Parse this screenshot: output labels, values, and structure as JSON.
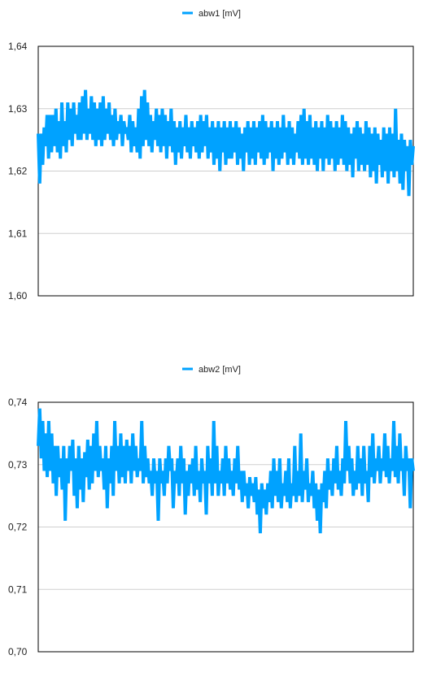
{
  "chart_data": [
    {
      "type": "line",
      "xlabel": "",
      "ylabel": "",
      "ylim": [
        1.6,
        1.64
      ],
      "yticks": [
        "1,60",
        "1,61",
        "1,62",
        "1,63",
        "1,64"
      ],
      "grid": true,
      "legend": "top-center",
      "series": [
        {
          "name": "abw1 [mV]",
          "color": "#00a2ff",
          "values": [
            1.626,
            1.618,
            1.626,
            1.621,
            1.627,
            1.624,
            1.629,
            1.622,
            1.629,
            1.623,
            1.629,
            1.624,
            1.63,
            1.623,
            1.628,
            1.622,
            1.631,
            1.624,
            1.628,
            1.623,
            1.631,
            1.625,
            1.63,
            1.624,
            1.631,
            1.626,
            1.629,
            1.625,
            1.631,
            1.625,
            1.632,
            1.626,
            1.633,
            1.625,
            1.63,
            1.626,
            1.632,
            1.625,
            1.631,
            1.624,
            1.63,
            1.625,
            1.631,
            1.624,
            1.632,
            1.625,
            1.63,
            1.626,
            1.631,
            1.625,
            1.629,
            1.624,
            1.63,
            1.625,
            1.628,
            1.626,
            1.629,
            1.624,
            1.628,
            1.626,
            1.627,
            1.625,
            1.629,
            1.623,
            1.628,
            1.624,
            1.627,
            1.623,
            1.63,
            1.622,
            1.632,
            1.624,
            1.633,
            1.625,
            1.631,
            1.624,
            1.629,
            1.623,
            1.628,
            1.625,
            1.63,
            1.624,
            1.629,
            1.623,
            1.63,
            1.624,
            1.629,
            1.622,
            1.628,
            1.624,
            1.63,
            1.623,
            1.628,
            1.621,
            1.627,
            1.623,
            1.628,
            1.622,
            1.627,
            1.624,
            1.629,
            1.623,
            1.627,
            1.622,
            1.628,
            1.624,
            1.627,
            1.623,
            1.628,
            1.622,
            1.629,
            1.623,
            1.628,
            1.624,
            1.629,
            1.622,
            1.627,
            1.623,
            1.628,
            1.621,
            1.627,
            1.622,
            1.628,
            1.62,
            1.627,
            1.623,
            1.628,
            1.621,
            1.627,
            1.622,
            1.628,
            1.622,
            1.627,
            1.623,
            1.628,
            1.621,
            1.627,
            1.622,
            1.626,
            1.62,
            1.627,
            1.623,
            1.628,
            1.621,
            1.627,
            1.622,
            1.628,
            1.621,
            1.627,
            1.623,
            1.628,
            1.622,
            1.629,
            1.621,
            1.628,
            1.622,
            1.627,
            1.623,
            1.628,
            1.62,
            1.627,
            1.622,
            1.628,
            1.621,
            1.627,
            1.622,
            1.629,
            1.623,
            1.627,
            1.621,
            1.628,
            1.622,
            1.627,
            1.621,
            1.626,
            1.623,
            1.628,
            1.622,
            1.629,
            1.621,
            1.63,
            1.622,
            1.628,
            1.621,
            1.629,
            1.622,
            1.627,
            1.621,
            1.628,
            1.62,
            1.627,
            1.622,
            1.628,
            1.62,
            1.627,
            1.622,
            1.629,
            1.621,
            1.628,
            1.622,
            1.627,
            1.62,
            1.628,
            1.621,
            1.627,
            1.622,
            1.629,
            1.621,
            1.628,
            1.62,
            1.627,
            1.621,
            1.626,
            1.619,
            1.627,
            1.622,
            1.628,
            1.62,
            1.627,
            1.621,
            1.626,
            1.62,
            1.628,
            1.621,
            1.627,
            1.619,
            1.626,
            1.62,
            1.627,
            1.618,
            1.626,
            1.621,
            1.625,
            1.619,
            1.627,
            1.62,
            1.626,
            1.618,
            1.627,
            1.62,
            1.626,
            1.619,
            1.63,
            1.62,
            1.625,
            1.618,
            1.626,
            1.617,
            1.625,
            1.62,
            1.624,
            1.616,
            1.625,
            1.621,
            1.624
          ]
        }
      ]
    },
    {
      "type": "line",
      "xlabel": "",
      "ylabel": "",
      "ylim": [
        0.7,
        0.74
      ],
      "yticks": [
        "0,70",
        "0,71",
        "0,72",
        "0,73",
        "0,74"
      ],
      "grid": true,
      "legend": "top-center",
      "series": [
        {
          "name": "abw2 [mV]",
          "color": "#00a2ff",
          "values": [
            0.733,
            0.739,
            0.731,
            0.737,
            0.729,
            0.735,
            0.728,
            0.737,
            0.729,
            0.735,
            0.727,
            0.733,
            0.725,
            0.733,
            0.728,
            0.731,
            0.726,
            0.733,
            0.721,
            0.731,
            0.727,
            0.733,
            0.729,
            0.734,
            0.725,
            0.731,
            0.723,
            0.733,
            0.726,
            0.731,
            0.724,
            0.732,
            0.728,
            0.734,
            0.726,
            0.733,
            0.727,
            0.735,
            0.729,
            0.737,
            0.728,
            0.733,
            0.729,
            0.731,
            0.726,
            0.733,
            0.723,
            0.731,
            0.727,
            0.733,
            0.725,
            0.737,
            0.729,
            0.733,
            0.727,
            0.735,
            0.728,
            0.733,
            0.727,
            0.734,
            0.729,
            0.733,
            0.727,
            0.735,
            0.729,
            0.733,
            0.728,
            0.731,
            0.729,
            0.737,
            0.727,
            0.733,
            0.728,
            0.731,
            0.727,
            0.729,
            0.725,
            0.731,
            0.727,
            0.729,
            0.721,
            0.731,
            0.727,
            0.729,
            0.725,
            0.731,
            0.727,
            0.733,
            0.729,
            0.731,
            0.723,
            0.729,
            0.727,
            0.731,
            0.725,
            0.733,
            0.727,
            0.731,
            0.722,
            0.729,
            0.725,
            0.73,
            0.727,
            0.731,
            0.725,
            0.733,
            0.726,
            0.729,
            0.724,
            0.731,
            0.727,
            0.729,
            0.722,
            0.733,
            0.727,
            0.731,
            0.725,
            0.737,
            0.727,
            0.733,
            0.725,
            0.729,
            0.727,
            0.731,
            0.725,
            0.733,
            0.727,
            0.731,
            0.726,
            0.729,
            0.725,
            0.731,
            0.727,
            0.733,
            0.726,
            0.729,
            0.724,
            0.729,
            0.725,
            0.727,
            0.723,
            0.728,
            0.725,
            0.727,
            0.724,
            0.728,
            0.722,
            0.726,
            0.719,
            0.727,
            0.723,
            0.726,
            0.722,
            0.727,
            0.724,
            0.729,
            0.723,
            0.731,
            0.725,
            0.729,
            0.724,
            0.731,
            0.723,
            0.727,
            0.725,
            0.729,
            0.724,
            0.731,
            0.723,
            0.727,
            0.725,
            0.733,
            0.724,
            0.729,
            0.725,
            0.735,
            0.724,
            0.729,
            0.726,
            0.731,
            0.724,
            0.727,
            0.725,
            0.729,
            0.723,
            0.727,
            0.721,
            0.726,
            0.719,
            0.727,
            0.724,
            0.729,
            0.723,
            0.731,
            0.726,
            0.729,
            0.725,
            0.731,
            0.727,
            0.733,
            0.726,
            0.729,
            0.725,
            0.731,
            0.727,
            0.737,
            0.729,
            0.733,
            0.727,
            0.731,
            0.725,
            0.729,
            0.726,
            0.733,
            0.727,
            0.731,
            0.725,
            0.733,
            0.727,
            0.729,
            0.724,
            0.733,
            0.728,
            0.735,
            0.727,
            0.731,
            0.729,
            0.733,
            0.727,
            0.731,
            0.729,
            0.735,
            0.728,
            0.733,
            0.727,
            0.731,
            0.729,
            0.737,
            0.728,
            0.733,
            0.727,
            0.735,
            0.729,
            0.731,
            0.725,
            0.733,
            0.729,
            0.731,
            0.723,
            0.731,
            0.729
          ]
        }
      ]
    }
  ]
}
